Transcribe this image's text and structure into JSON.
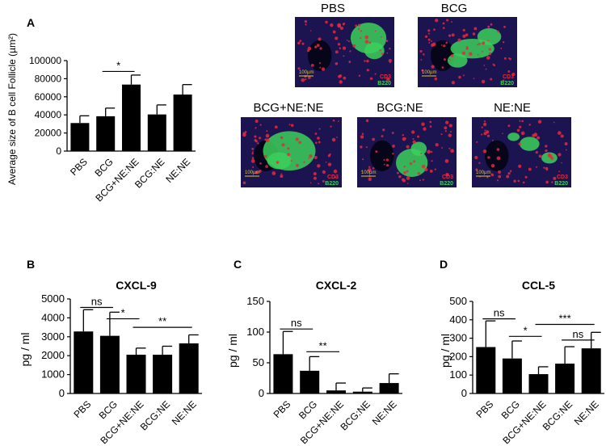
{
  "panel_labels": {
    "a": "A",
    "b": "B",
    "c": "C",
    "d": "D"
  },
  "micrographs": {
    "scale_label": "100µm",
    "stain_red": "CD3",
    "stain_green": "B220",
    "colors": {
      "background": "#1c1450",
      "red": "#e8283c",
      "green": "#3ccf5a",
      "scale": "#d8c840"
    },
    "images": [
      {
        "title": "PBS"
      },
      {
        "title": "BCG"
      },
      {
        "title": "BCG+NE:NE"
      },
      {
        "title": "BCG:NE"
      },
      {
        "title": "NE:NE"
      }
    ]
  },
  "chart_data": [
    {
      "id": "A",
      "type": "bar",
      "title": "",
      "ylabel": "Average size of B cell Follicle (µm²)",
      "categories": [
        "PBS",
        "BCG",
        "BCG+NE:NE",
        "BCG:NE",
        "NE:NE"
      ],
      "values": [
        31000,
        38500,
        73500,
        40500,
        62500
      ],
      "errors": [
        8000,
        9000,
        10500,
        10500,
        11000
      ],
      "yticks": [
        "0",
        "20000",
        "40000",
        "60000",
        "80000",
        "100000"
      ],
      "ylim": [
        0,
        100000
      ],
      "significance": [
        {
          "from": 1,
          "to": 2,
          "label": "*",
          "y": 88000
        }
      ],
      "bar_color": "#000000"
    },
    {
      "id": "B",
      "type": "bar",
      "title": "CXCL-9",
      "ylabel": "pg / ml",
      "categories": [
        "PBS",
        "BCG",
        "BCG+NE:NE",
        "BCG:NE",
        "NE:NE"
      ],
      "values": [
        3280,
        3050,
        2050,
        2050,
        2650
      ],
      "errors": [
        1150,
        1250,
        350,
        450,
        450
      ],
      "yticks": [
        "0",
        "1000",
        "2000",
        "3000",
        "4000",
        "5000"
      ],
      "ylim": [
        0,
        5000
      ],
      "significance": [
        {
          "from": 0,
          "to": 1,
          "label": "ns",
          "y": 4550
        },
        {
          "from": 1,
          "to": 2,
          "label": "*",
          "y": 3950
        },
        {
          "from": 2,
          "to": 4,
          "label": "**",
          "y": 3500
        }
      ],
      "bar_color": "#000000"
    },
    {
      "id": "C",
      "type": "bar",
      "title": "CXCL-2",
      "ylabel": "pg / ml",
      "categories": [
        "PBS",
        "BCG",
        "BCG+NE:NE",
        "BCG:NE",
        "NE:NE"
      ],
      "values": [
        64,
        37,
        5,
        3,
        17
      ],
      "errors": [
        37,
        23,
        12,
        6,
        15
      ],
      "yticks": [
        "0",
        "50",
        "100",
        "150"
      ],
      "ylim": [
        0,
        150
      ],
      "significance": [
        {
          "from": 0,
          "to": 1,
          "label": "ns",
          "y": 105
        },
        {
          "from": 1,
          "to": 2,
          "label": "**",
          "y": 68
        }
      ],
      "bar_color": "#000000"
    },
    {
      "id": "D",
      "type": "bar",
      "title": "CCL-5",
      "ylabel": "pg / ml",
      "categories": [
        "PBS",
        "BCG",
        "BCG+NE:NE",
        "BCG:NE",
        "NE:NE"
      ],
      "values": [
        252,
        190,
        105,
        162,
        245
      ],
      "errors": [
        142,
        95,
        40,
        92,
        87
      ],
      "yticks": [
        "0",
        "100",
        "200",
        "300",
        "400",
        "500"
      ],
      "ylim": [
        0,
        500
      ],
      "significance": [
        {
          "from": 0,
          "to": 1,
          "label": "ns",
          "y": 405
        },
        {
          "from": 1,
          "to": 2,
          "label": "*",
          "y": 310
        },
        {
          "from": 2,
          "to": 4,
          "label": "***",
          "y": 375
        },
        {
          "from": 3,
          "to": 4,
          "label": "ns",
          "y": 290
        }
      ],
      "bar_color": "#000000"
    }
  ]
}
